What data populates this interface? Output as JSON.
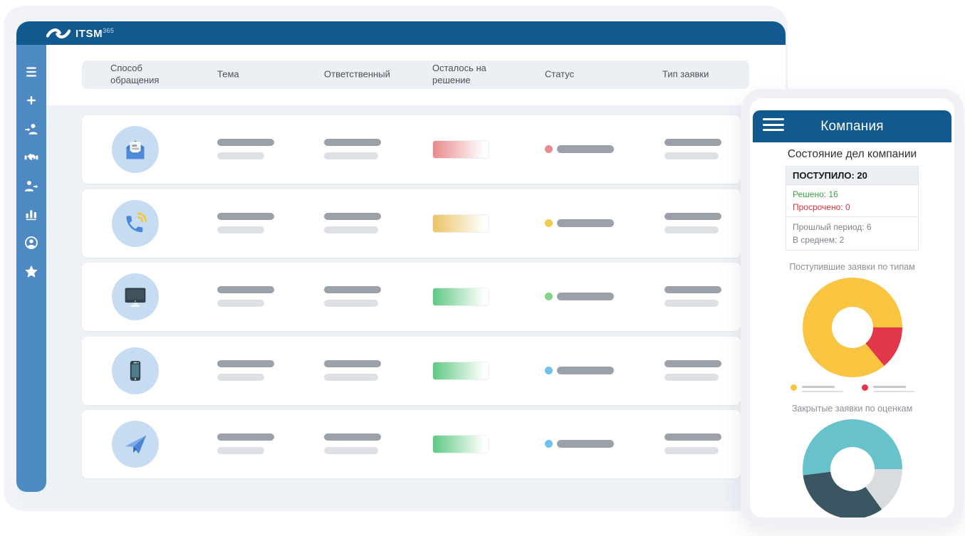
{
  "brand": {
    "name": "ITSM",
    "sup": "365"
  },
  "sidebar": {
    "icons": [
      "menu",
      "plus",
      "user-add",
      "handshake",
      "user-forward",
      "bar-chart",
      "user-circle",
      "star"
    ]
  },
  "table": {
    "columns": [
      "Способ обращения",
      "Тема",
      "Ответственный",
      "Осталось на решение",
      "Статус",
      "Тип заявки"
    ]
  },
  "rows": [
    {
      "channel": "mail-open",
      "progress": "red",
      "status_color": "#e98b8b"
    },
    {
      "channel": "phone",
      "progress": "yellow",
      "status_color": "#f3cb4d"
    },
    {
      "channel": "monitor",
      "progress": "green",
      "status_color": "#82d489"
    },
    {
      "channel": "smartphone",
      "progress": "green",
      "status_color": "#6fc1f3"
    },
    {
      "channel": "paper-plane",
      "progress": "green",
      "status_color": "#6fc1f3"
    }
  ],
  "progress_colors": {
    "red": "#e88a8a",
    "yellow": "#eac464",
    "green": "#5fc983"
  },
  "mobile": {
    "title": "Компания",
    "heading": "Состояние дел компании",
    "stats": {
      "received": "ПОСТУПИЛО: 20",
      "solved": "Решено: 16",
      "overdue": "Просрочено: 0",
      "past_period": "Прошлый период: 6",
      "average": "В среднем: 2"
    }
  },
  "chart_data": [
    {
      "type": "pie",
      "donut": true,
      "title": "Поступившие заявки по типам",
      "start_deg": 90,
      "slices": [
        {
          "name": "type-b",
          "pct": 14,
          "color": "#e2374b"
        },
        {
          "name": "type-a",
          "pct": 86,
          "color": "#f9c440"
        }
      ],
      "legend_order": [
        "#f9c440",
        "#e2374b"
      ],
      "legend_position": "bottom"
    },
    {
      "type": "pie",
      "donut": true,
      "title": "Закрытые заявки по оценкам",
      "start_deg": 90,
      "slices": [
        {
          "name": "rating-c",
          "pct": 15,
          "color": "#d9dcdf"
        },
        {
          "name": "rating-b",
          "pct": 33,
          "color": "#3b5663"
        },
        {
          "name": "rating-a",
          "pct": 52,
          "color": "#68c2cc"
        }
      ],
      "legend_order": [
        "#68c2cc",
        "#3b5663",
        "#d9dcdf"
      ],
      "legend_position": "bottom"
    }
  ],
  "colors": {
    "header_blue": "#11598f",
    "sidebar_blue": "#4d89c3",
    "row_icon_circle": "#c6dcf3",
    "bar_dark": "#9aa1a9",
    "bar_light": "#dde1e6"
  }
}
